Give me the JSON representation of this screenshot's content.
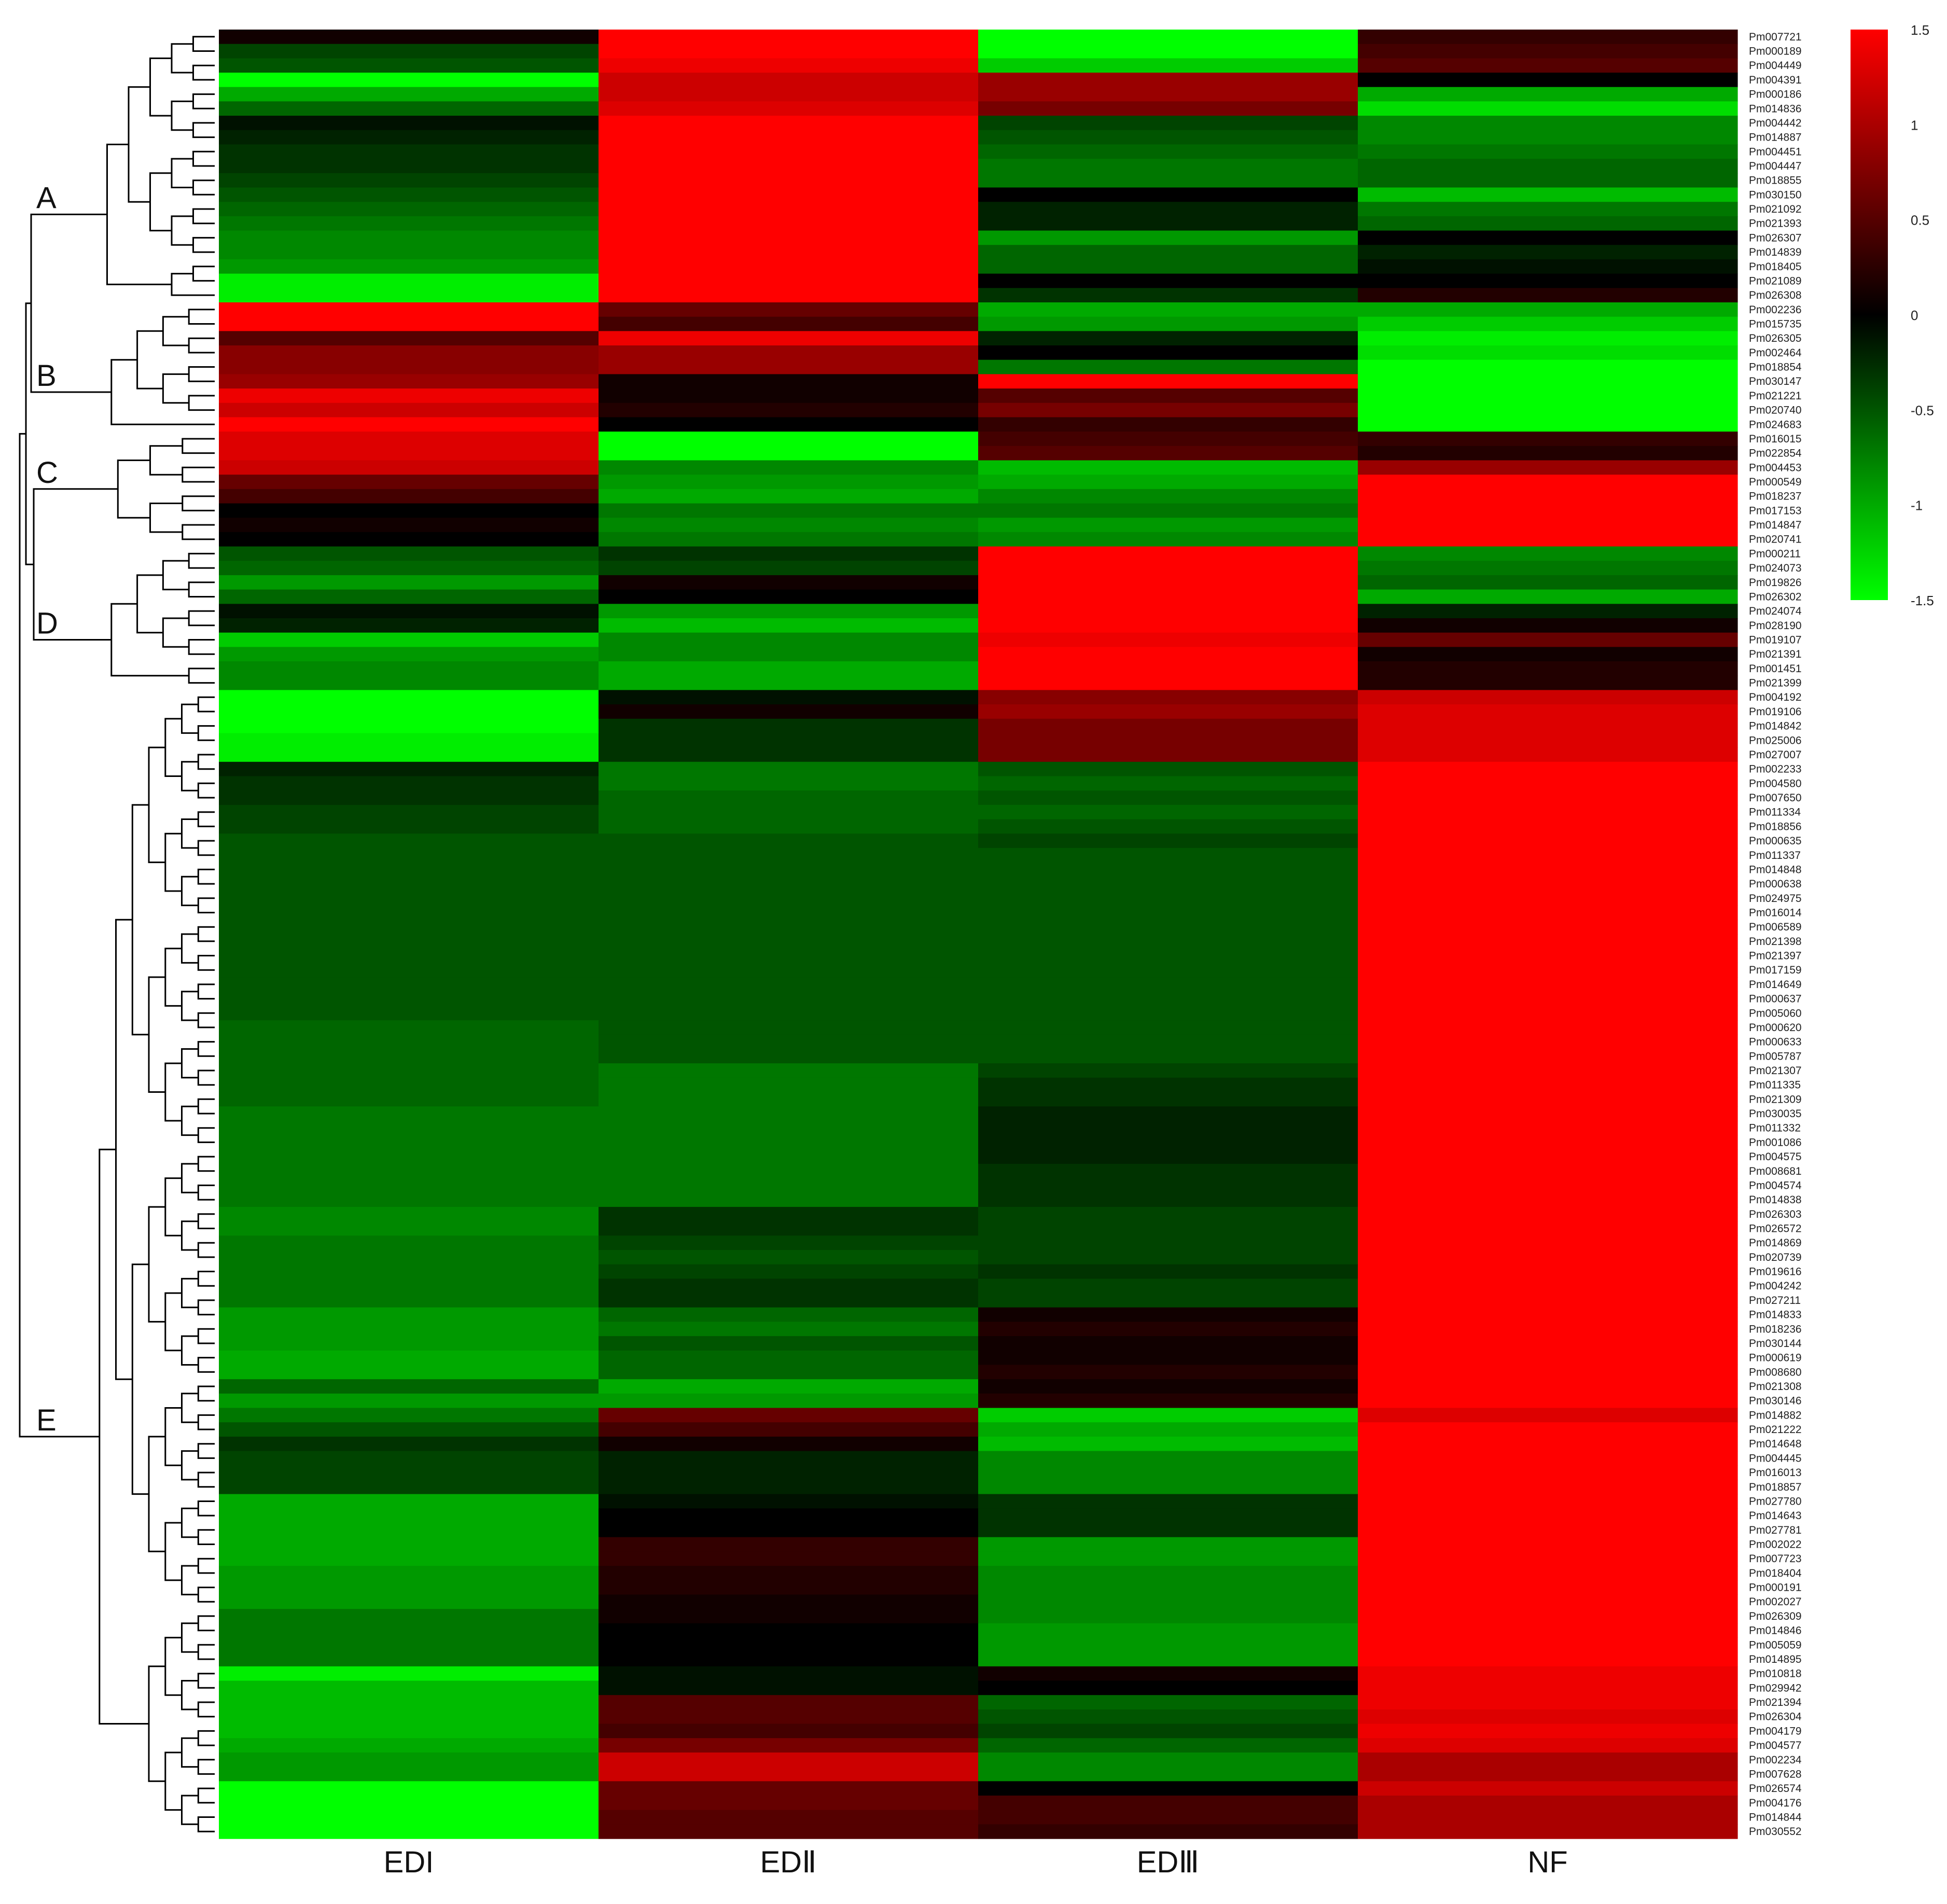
{
  "chart_data": {
    "type": "heatmap",
    "title": "",
    "xlabel": "",
    "ylabel": "",
    "columns": [
      "EDI",
      "EDⅡ",
      "EDⅢ",
      "NF"
    ],
    "rows": [
      {
        "gene": "Pm007721",
        "v": [
          0.1,
          1.5,
          -1.5,
          0.3
        ]
      },
      {
        "gene": "Pm000189",
        "v": [
          -0.4,
          1.5,
          -1.5,
          0.4
        ]
      },
      {
        "gene": "Pm004449",
        "v": [
          -0.5,
          1.4,
          -1.2,
          0.5
        ]
      },
      {
        "gene": "Pm004391",
        "v": [
          -1.5,
          1.2,
          0.9,
          0
        ]
      },
      {
        "gene": "Pm000186",
        "v": [
          -1.0,
          1.2,
          0.9,
          -1.0
        ]
      },
      {
        "gene": "Pm014836",
        "v": [
          -0.6,
          1.3,
          0.7,
          -1.3
        ]
      },
      {
        "gene": "Pm004442",
        "v": [
          -0.1,
          1.5,
          -0.4,
          -0.8
        ]
      },
      {
        "gene": "Pm014887",
        "v": [
          -0.2,
          1.5,
          -0.5,
          -0.8
        ]
      },
      {
        "gene": "Pm004451",
        "v": [
          -0.3,
          1.5,
          -0.6,
          -0.7
        ]
      },
      {
        "gene": "Pm004447",
        "v": [
          -0.3,
          1.5,
          -0.7,
          -0.6
        ]
      },
      {
        "gene": "Pm018855",
        "v": [
          -0.4,
          1.5,
          -0.7,
          -0.6
        ]
      },
      {
        "gene": "Pm030150",
        "v": [
          -0.5,
          1.5,
          0,
          -1.1
        ]
      },
      {
        "gene": "Pm021092",
        "v": [
          -0.6,
          1.5,
          -0.2,
          -0.7
        ]
      },
      {
        "gene": "Pm021393",
        "v": [
          -0.7,
          1.5,
          -0.2,
          -0.6
        ]
      },
      {
        "gene": "Pm026307",
        "v": [
          -0.8,
          1.5,
          -0.9,
          0
        ]
      },
      {
        "gene": "Pm014839",
        "v": [
          -0.8,
          1.5,
          -0.6,
          -0.2
        ]
      },
      {
        "gene": "Pm018405",
        "v": [
          -0.9,
          1.5,
          -0.6,
          -0.1
        ]
      },
      {
        "gene": "Pm021089",
        "v": [
          -1.4,
          1.5,
          0,
          0
        ]
      },
      {
        "gene": "Pm026308",
        "v": [
          -1.4,
          1.5,
          -0.3,
          0.2
        ]
      },
      {
        "gene": "Pm002236",
        "v": [
          1.5,
          0.6,
          -1.0,
          -1.0
        ]
      },
      {
        "gene": "Pm015735",
        "v": [
          1.5,
          0.4,
          -0.9,
          -1.2
        ]
      },
      {
        "gene": "Pm026305",
        "v": [
          0.5,
          1.4,
          -0.2,
          -1.4
        ]
      },
      {
        "gene": "Pm002464",
        "v": [
          0.8,
          0.9,
          0,
          -1.3
        ]
      },
      {
        "gene": "Pm018854",
        "v": [
          0.8,
          0.9,
          -0.7,
          -1.5
        ]
      },
      {
        "gene": "Pm030147",
        "v": [
          0.9,
          0.1,
          1.5,
          -1.5
        ]
      },
      {
        "gene": "Pm021221",
        "v": [
          1.4,
          0.1,
          0.5,
          -1.5
        ]
      },
      {
        "gene": "Pm020740",
        "v": [
          1.2,
          0.2,
          0.7,
          -1.5
        ]
      },
      {
        "gene": "Pm024683",
        "v": [
          1.5,
          0,
          0.3,
          -1.5
        ]
      },
      {
        "gene": "Pm016015",
        "v": [
          1.3,
          -1.5,
          0.4,
          0.3
        ]
      },
      {
        "gene": "Pm022854",
        "v": [
          1.3,
          -1.5,
          0.5,
          0.2
        ]
      },
      {
        "gene": "Pm004453",
        "v": [
          1.2,
          -0.8,
          -1.1,
          0.9
        ]
      },
      {
        "gene": "Pm000549",
        "v": [
          0.6,
          -0.9,
          -1.0,
          1.5
        ]
      },
      {
        "gene": "Pm018237",
        "v": [
          0.4,
          -1.0,
          -0.8,
          1.5
        ]
      },
      {
        "gene": "Pm017153",
        "v": [
          0,
          -0.7,
          -0.7,
          1.5
        ]
      },
      {
        "gene": "Pm014847",
        "v": [
          0.1,
          -0.8,
          -0.9,
          1.5
        ]
      },
      {
        "gene": "Pm020741",
        "v": [
          0,
          -0.7,
          -0.8,
          1.5
        ]
      },
      {
        "gene": "Pm000211",
        "v": [
          -0.5,
          -0.3,
          1.5,
          -0.8
        ]
      },
      {
        "gene": "Pm024073",
        "v": [
          -0.6,
          -0.4,
          1.5,
          -0.7
        ]
      },
      {
        "gene": "Pm019826",
        "v": [
          -0.9,
          0.1,
          1.5,
          -0.6
        ]
      },
      {
        "gene": "Pm026302",
        "v": [
          -0.6,
          0,
          1.5,
          -1.0
        ]
      },
      {
        "gene": "Pm024074",
        "v": [
          -0.1,
          -0.9,
          1.5,
          -0.2
        ]
      },
      {
        "gene": "Pm028190",
        "v": [
          -0.2,
          -1.1,
          1.5,
          0.1
        ]
      },
      {
        "gene": "Pm019107",
        "v": [
          -1.2,
          -0.8,
          1.4,
          0.6
        ]
      },
      {
        "gene": "Pm021391",
        "v": [
          -0.9,
          -0.8,
          1.5,
          0.1
        ]
      },
      {
        "gene": "Pm001451",
        "v": [
          -0.8,
          -1.0,
          1.5,
          0.2
        ]
      },
      {
        "gene": "Pm021399",
        "v": [
          -0.8,
          -1.0,
          1.5,
          0.2
        ]
      },
      {
        "gene": "Pm004192",
        "v": [
          -1.5,
          -0.1,
          0.8,
          1.2
        ]
      },
      {
        "gene": "Pm019106",
        "v": [
          -1.5,
          0.1,
          0.9,
          1.3
        ]
      },
      {
        "gene": "Pm014842",
        "v": [
          -1.5,
          -0.3,
          0.7,
          1.3
        ]
      },
      {
        "gene": "Pm025006",
        "v": [
          -1.4,
          -0.3,
          0.7,
          1.3
        ]
      },
      {
        "gene": "Pm027007",
        "v": [
          -1.4,
          -0.3,
          0.7,
          1.3
        ]
      },
      {
        "gene": "Pm002233",
        "v": [
          -0.2,
          -0.7,
          -0.5,
          1.5
        ]
      },
      {
        "gene": "Pm004580",
        "v": [
          -0.3,
          -0.7,
          -0.6,
          1.5
        ]
      },
      {
        "gene": "Pm007650",
        "v": [
          -0.3,
          -0.6,
          -0.5,
          1.5
        ]
      },
      {
        "gene": "Pm011334",
        "v": [
          -0.4,
          -0.6,
          -0.6,
          1.5
        ]
      },
      {
        "gene": "Pm018856",
        "v": [
          -0.4,
          -0.6,
          -0.5,
          1.5
        ]
      },
      {
        "gene": "Pm000635",
        "v": [
          -0.5,
          -0.5,
          -0.4,
          1.5
        ]
      },
      {
        "gene": "Pm011337",
        "v": [
          -0.5,
          -0.5,
          -0.5,
          1.5
        ]
      },
      {
        "gene": "Pm014848",
        "v": [
          -0.5,
          -0.5,
          -0.5,
          1.5
        ]
      },
      {
        "gene": "Pm000638",
        "v": [
          -0.5,
          -0.5,
          -0.5,
          1.5
        ]
      },
      {
        "gene": "Pm024975",
        "v": [
          -0.5,
          -0.5,
          -0.5,
          1.5
        ]
      },
      {
        "gene": "Pm016014",
        "v": [
          -0.5,
          -0.5,
          -0.5,
          1.5
        ]
      },
      {
        "gene": "Pm006589",
        "v": [
          -0.5,
          -0.5,
          -0.5,
          1.5
        ]
      },
      {
        "gene": "Pm021398",
        "v": [
          -0.5,
          -0.5,
          -0.5,
          1.5
        ]
      },
      {
        "gene": "Pm021397",
        "v": [
          -0.5,
          -0.5,
          -0.5,
          1.5
        ]
      },
      {
        "gene": "Pm017159",
        "v": [
          -0.5,
          -0.5,
          -0.5,
          1.5
        ]
      },
      {
        "gene": "Pm014649",
        "v": [
          -0.5,
          -0.5,
          -0.5,
          1.5
        ]
      },
      {
        "gene": "Pm000637",
        "v": [
          -0.5,
          -0.5,
          -0.5,
          1.5
        ]
      },
      {
        "gene": "Pm005060",
        "v": [
          -0.5,
          -0.5,
          -0.5,
          1.5
        ]
      },
      {
        "gene": "Pm000620",
        "v": [
          -0.6,
          -0.5,
          -0.5,
          1.5
        ]
      },
      {
        "gene": "Pm000633",
        "v": [
          -0.6,
          -0.5,
          -0.5,
          1.5
        ]
      },
      {
        "gene": "Pm005787",
        "v": [
          -0.6,
          -0.5,
          -0.5,
          1.5
        ]
      },
      {
        "gene": "Pm021307",
        "v": [
          -0.6,
          -0.7,
          -0.4,
          1.5
        ]
      },
      {
        "gene": "Pm011335",
        "v": [
          -0.6,
          -0.7,
          -0.3,
          1.5
        ]
      },
      {
        "gene": "Pm021309",
        "v": [
          -0.6,
          -0.7,
          -0.3,
          1.5
        ]
      },
      {
        "gene": "Pm030035",
        "v": [
          -0.7,
          -0.7,
          -0.2,
          1.5
        ]
      },
      {
        "gene": "Pm011332",
        "v": [
          -0.7,
          -0.7,
          -0.2,
          1.5
        ]
      },
      {
        "gene": "Pm001086",
        "v": [
          -0.7,
          -0.7,
          -0.2,
          1.5
        ]
      },
      {
        "gene": "Pm004575",
        "v": [
          -0.7,
          -0.7,
          -0.2,
          1.5
        ]
      },
      {
        "gene": "Pm008681",
        "v": [
          -0.7,
          -0.7,
          -0.3,
          1.5
        ]
      },
      {
        "gene": "Pm004574",
        "v": [
          -0.7,
          -0.7,
          -0.3,
          1.5
        ]
      },
      {
        "gene": "Pm014838",
        "v": [
          -0.7,
          -0.7,
          -0.3,
          1.5
        ]
      },
      {
        "gene": "Pm026303",
        "v": [
          -0.8,
          -0.3,
          -0.4,
          1.5
        ]
      },
      {
        "gene": "Pm026572",
        "v": [
          -0.8,
          -0.3,
          -0.4,
          1.5
        ]
      },
      {
        "gene": "Pm014869",
        "v": [
          -0.7,
          -0.4,
          -0.4,
          1.5
        ]
      },
      {
        "gene": "Pm020739",
        "v": [
          -0.7,
          -0.5,
          -0.4,
          1.5
        ]
      },
      {
        "gene": "Pm019616",
        "v": [
          -0.7,
          -0.4,
          -0.3,
          1.5
        ]
      },
      {
        "gene": "Pm004242",
        "v": [
          -0.7,
          -0.3,
          -0.4,
          1.5
        ]
      },
      {
        "gene": "Pm027211",
        "v": [
          -0.7,
          -0.3,
          -0.4,
          1.5
        ]
      },
      {
        "gene": "Pm014833",
        "v": [
          -0.9,
          -0.6,
          0.1,
          1.5
        ]
      },
      {
        "gene": "Pm018236",
        "v": [
          -0.9,
          -0.7,
          0.2,
          1.5
        ]
      },
      {
        "gene": "Pm030144",
        "v": [
          -0.9,
          -0.5,
          0.1,
          1.5
        ]
      },
      {
        "gene": "Pm000619",
        "v": [
          -1.0,
          -0.6,
          0.1,
          1.5
        ]
      },
      {
        "gene": "Pm008680",
        "v": [
          -1.0,
          -0.6,
          0.2,
          1.5
        ]
      },
      {
        "gene": "Pm021308",
        "v": [
          -0.6,
          -1.0,
          0.1,
          1.5
        ]
      },
      {
        "gene": "Pm030146",
        "v": [
          -0.9,
          -0.9,
          0.2,
          1.5
        ]
      },
      {
        "gene": "Pm014882",
        "v": [
          -0.7,
          0.6,
          -1.2,
          1.3
        ]
      },
      {
        "gene": "Pm021222",
        "v": [
          -0.5,
          0.4,
          -1.0,
          1.5
        ]
      },
      {
        "gene": "Pm014648",
        "v": [
          -0.3,
          0.1,
          -1.1,
          1.5
        ]
      },
      {
        "gene": "Pm004445",
        "v": [
          -0.4,
          -0.2,
          -0.8,
          1.5
        ]
      },
      {
        "gene": "Pm016013",
        "v": [
          -0.4,
          -0.2,
          -0.8,
          1.5
        ]
      },
      {
        "gene": "Pm018857",
        "v": [
          -0.4,
          -0.2,
          -0.8,
          1.5
        ]
      },
      {
        "gene": "Pm027780",
        "v": [
          -1.0,
          -0.1,
          -0.3,
          1.5
        ]
      },
      {
        "gene": "Pm014643",
        "v": [
          -1.0,
          0,
          -0.3,
          1.5
        ]
      },
      {
        "gene": "Pm027781",
        "v": [
          -1.0,
          0,
          -0.3,
          1.5
        ]
      },
      {
        "gene": "Pm002022",
        "v": [
          -1.0,
          0.3,
          -0.9,
          1.5
        ]
      },
      {
        "gene": "Pm007723",
        "v": [
          -1.0,
          0.3,
          -0.9,
          1.5
        ]
      },
      {
        "gene": "Pm018404",
        "v": [
          -0.9,
          0.2,
          -0.8,
          1.5
        ]
      },
      {
        "gene": "Pm000191",
        "v": [
          -0.9,
          0.2,
          -0.8,
          1.5
        ]
      },
      {
        "gene": "Pm002027",
        "v": [
          -0.9,
          0.1,
          -0.8,
          1.5
        ]
      },
      {
        "gene": "Pm026309",
        "v": [
          -0.7,
          0.1,
          -0.8,
          1.5
        ]
      },
      {
        "gene": "Pm014846",
        "v": [
          -0.7,
          0,
          -0.9,
          1.5
        ]
      },
      {
        "gene": "Pm005059",
        "v": [
          -0.7,
          0,
          -0.9,
          1.5
        ]
      },
      {
        "gene": "Pm014895",
        "v": [
          -0.7,
          0,
          -0.9,
          1.5
        ]
      },
      {
        "gene": "Pm010818",
        "v": [
          -1.4,
          -0.1,
          0.1,
          1.4
        ]
      },
      {
        "gene": "Pm029942",
        "v": [
          -1.1,
          -0.1,
          0,
          1.4
        ]
      },
      {
        "gene": "Pm021394",
        "v": [
          -1.1,
          0.5,
          -0.6,
          1.4
        ]
      },
      {
        "gene": "Pm026304",
        "v": [
          -1.1,
          0.5,
          -0.5,
          1.3
        ]
      },
      {
        "gene": "Pm004179",
        "v": [
          -1.1,
          0.4,
          -0.4,
          1.4
        ]
      },
      {
        "gene": "Pm004577",
        "v": [
          -1.0,
          0.7,
          -0.6,
          1.3
        ]
      },
      {
        "gene": "Pm002234",
        "v": [
          -0.9,
          1.2,
          -0.8,
          1.0
        ]
      },
      {
        "gene": "Pm007628",
        "v": [
          -0.9,
          1.2,
          -0.8,
          1.0
        ]
      },
      {
        "gene": "Pm026574",
        "v": [
          -1.5,
          0.6,
          0,
          1.2
        ]
      },
      {
        "gene": "Pm004176",
        "v": [
          -1.5,
          0.6,
          0.4,
          1.0
        ]
      },
      {
        "gene": "Pm014844",
        "v": [
          -1.5,
          0.5,
          0.4,
          1.0
        ]
      },
      {
        "gene": "Pm030552",
        "v": [
          -1.5,
          0.5,
          0.3,
          1.0
        ]
      }
    ],
    "clusters": [
      {
        "label": "A",
        "rows": [
          0,
          18
        ]
      },
      {
        "label": "B",
        "rows": [
          19,
          27
        ]
      },
      {
        "label": "C",
        "rows": [
          28,
          35
        ]
      },
      {
        "label": "D",
        "rows": [
          36,
          45
        ]
      },
      {
        "label": "E",
        "rows": [
          46,
          125
        ]
      }
    ],
    "colorbar": {
      "ticks": [
        "1.5",
        "1",
        "0.5",
        "0",
        "-0.5",
        "-1",
        "-1.5"
      ],
      "range": [
        -1.5,
        1.5
      ],
      "low_color": "#00ff00",
      "mid_color": "#000000",
      "high_color": "#ff0000"
    },
    "grid": false,
    "legend_position": "top-right"
  }
}
